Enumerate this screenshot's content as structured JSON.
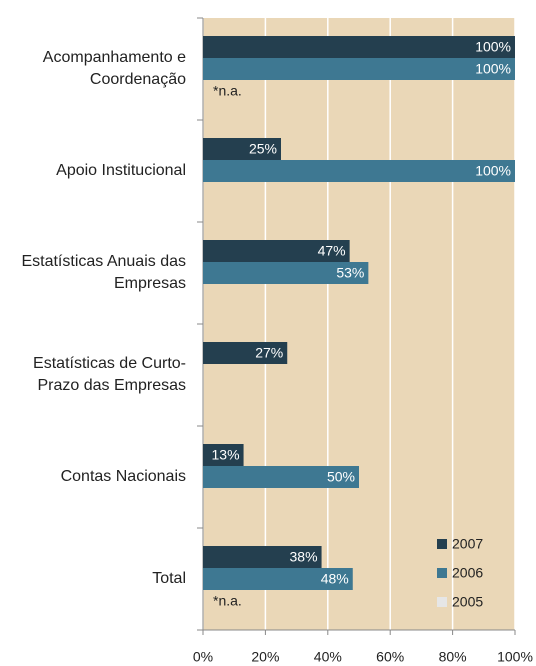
{
  "chart_data": {
    "type": "barh",
    "categories": [
      "Acompanhamento e\nCoordenação",
      "Apoio Institucional",
      "Estatísticas Anuais das\nEmpresas",
      "Estatísticas de Curto-\nPrazo das Empresas",
      "Contas Nacionais",
      "Total"
    ],
    "series": [
      {
        "name": "2007",
        "color": "#243f4f",
        "values": [
          100,
          25,
          47,
          27,
          13,
          38
        ],
        "value_labels": [
          "100%",
          "25%",
          "47%",
          "27%",
          "13%",
          "38%"
        ]
      },
      {
        "name": "2006",
        "color": "#3e7892",
        "values": [
          100,
          100,
          53,
          null,
          50,
          48
        ],
        "value_labels": [
          "100%",
          "100%",
          "53%",
          null,
          "50%",
          "48%"
        ]
      },
      {
        "name": "2005",
        "color": "#e6e6e6",
        "values": [
          null,
          null,
          null,
          null,
          null,
          null
        ],
        "value_labels": [
          "*n.a.",
          null,
          null,
          null,
          null,
          "*n.a."
        ]
      }
    ],
    "xlim": [
      0,
      100
    ],
    "xticks": [
      {
        "value": 0,
        "label": "0%"
      },
      {
        "value": 20,
        "label": "20%"
      },
      {
        "value": 40,
        "label": "40%"
      },
      {
        "value": 60,
        "label": "60%"
      },
      {
        "value": 80,
        "label": "80%"
      },
      {
        "value": 100,
        "label": "100%"
      }
    ],
    "grid": true,
    "legend": "lower right",
    "background": "#ead7b7"
  }
}
